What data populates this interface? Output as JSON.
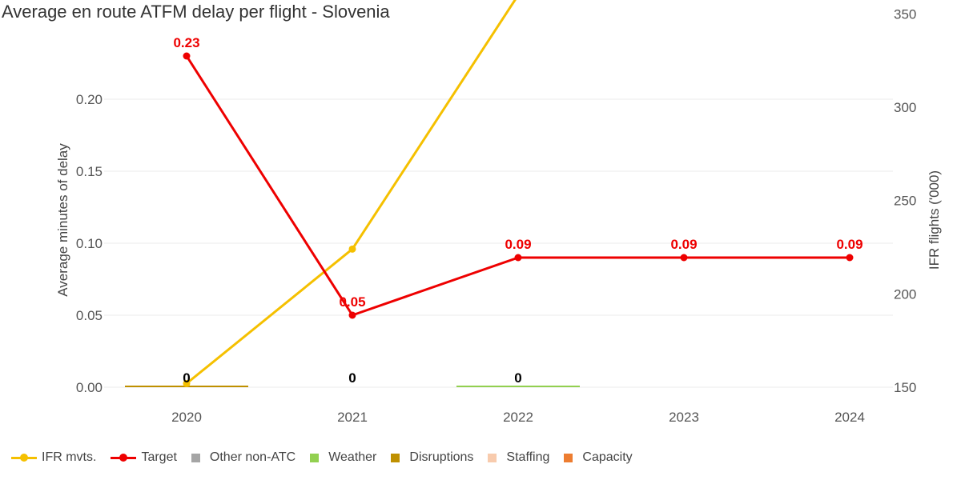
{
  "chart_data": {
    "type": "line",
    "title": "Average en route ATFM delay per flight - Slovenia",
    "categories": [
      "2020",
      "2021",
      "2022",
      "2023",
      "2024"
    ],
    "y_left": {
      "label": "Average minutes of delay",
      "range": [
        0,
        0.25
      ],
      "ticks": [
        "0.00",
        "0.05",
        "0.10",
        "0.15",
        "0.20"
      ]
    },
    "y_right": {
      "label": "IFR flights ('000)",
      "range": [
        150,
        360
      ],
      "ticks": [
        "150",
        "200",
        "250",
        "300",
        "350"
      ]
    },
    "grid": true,
    "legend_position": "bottom-left",
    "series": [
      {
        "name": "IFR mvts.",
        "type": "line",
        "axis": "right",
        "color": "#f5c000",
        "values": [
          152,
          224,
          360,
          null,
          null
        ]
      },
      {
        "name": "Target",
        "type": "line",
        "axis": "left",
        "color": "#ee0000",
        "values": [
          0.23,
          0.05,
          0.09,
          0.09,
          0.09
        ],
        "labels": [
          "0.23",
          "0.05",
          "0.09",
          "0.09",
          "0.09"
        ]
      },
      {
        "name": "Other non-ATC",
        "type": "bar",
        "axis": "left",
        "color": "#a5a5a5",
        "values": [
          null,
          null,
          null,
          null,
          null
        ]
      },
      {
        "name": "Weather",
        "type": "bar",
        "axis": "left",
        "color": "#92d050",
        "values": [
          null,
          null,
          0.0005,
          null,
          null
        ]
      },
      {
        "name": "Disruptions",
        "type": "bar",
        "axis": "left",
        "color": "#bf9000",
        "values": [
          0.0005,
          null,
          null,
          null,
          null
        ]
      },
      {
        "name": "Staffing",
        "type": "bar",
        "axis": "left",
        "color": "#f8cbad",
        "values": [
          null,
          null,
          null,
          null,
          null
        ]
      },
      {
        "name": "Capacity",
        "type": "bar",
        "axis": "left",
        "color": "#ed7d31",
        "values": [
          null,
          null,
          null,
          null,
          null
        ]
      }
    ],
    "totals": [
      {
        "category": "2020",
        "label": "0"
      },
      {
        "category": "2021",
        "label": "0"
      },
      {
        "category": "2022",
        "label": "0"
      }
    ]
  }
}
